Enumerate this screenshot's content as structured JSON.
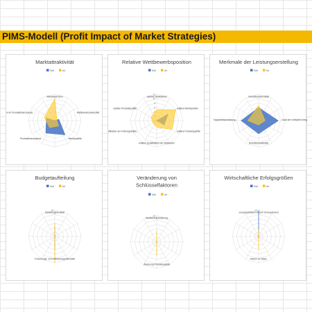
{
  "page_title": "PIMS-Modell (Profit Impact of Market Strategies)",
  "chart_data": [
    {
      "type": "radar",
      "title": [
        "Marktattraktivität"
      ],
      "legend": [
        "Soll",
        "Ist"
      ],
      "axis_max": 12,
      "tick_labels": [],
      "axes": [
        "Marktwachstum",
        "Wettbewerbsintensität",
        "Marktqualität",
        "Produktlebenszyklus",
        "Position im Produktlebenszyklus"
      ],
      "series": [
        {
          "name": "Soll",
          "values": [
            0,
            2,
            8,
            7,
            4
          ]
        },
        {
          "name": "Ist",
          "values": [
            10,
            1,
            3,
            4,
            5
          ]
        }
      ]
    },
    {
      "type": "radar",
      "title": [
        "Relative Wettbewerbsposition"
      ],
      "legend": [
        "Soll",
        "Ist"
      ],
      "axis_max": 12,
      "tick_labels": [
        "12",
        "10",
        "8",
        "6",
        "4",
        "2",
        "0"
      ],
      "axes": [
        "relativer Marktanteil",
        "relative Marktposition",
        "relative Produktqualität",
        "relative Qualifikation der Mitarbeiter",
        "relative Qualifikation der Führungskräfte",
        "relative Produktqualität"
      ],
      "series": [
        {
          "name": "Soll",
          "values": [
            0,
            6,
            4,
            0,
            0,
            0
          ]
        },
        {
          "name": "Ist",
          "values": [
            5,
            10,
            8,
            3,
            2,
            3
          ]
        }
      ]
    },
    {
      "type": "radar",
      "title": [
        "Merkmale der Leistungserstellung"
      ],
      "legend": [
        "Soll",
        "Ist"
      ],
      "axis_max": 12,
      "tick_labels": [],
      "axes": [
        "Investitionsintensität",
        "Grad der vertikalen Integration",
        "Arbeitsproduktivität",
        "Kapazitätsauslastung"
      ],
      "series": [
        {
          "name": "Soll",
          "values": [
            6,
            9,
            6,
            8
          ]
        },
        {
          "name": "Ist",
          "values": [
            7,
            3,
            2,
            5
          ]
        }
      ]
    },
    {
      "type": "radar",
      "title": [
        "Budgetaufteilung"
      ],
      "legend": [
        "Soll",
        "Ist"
      ],
      "axis_max": 12,
      "tick_labels": [
        "12"
      ],
      "axes": [
        "Marketingintensität",
        "Forschungs- und Entwicklungsintensität"
      ],
      "series": [
        {
          "name": "Soll",
          "values": [
            4,
            6
          ]
        },
        {
          "name": "Ist",
          "values": [
            6,
            12
          ]
        }
      ]
    },
    {
      "type": "radar",
      "title": [
        "Veränderung von",
        "Schlüsselfaktoren"
      ],
      "legend": [
        "Soll",
        "Ist"
      ],
      "axis_max": 12,
      "tick_labels": [
        "12"
      ],
      "axes": [
        "Marktanteilsänderung",
        "Änderung Produktqualität"
      ],
      "series": [
        {
          "name": "Soll",
          "values": [
            0,
            0
          ]
        },
        {
          "name": "Ist",
          "values": [
            5,
            6
          ]
        }
      ]
    },
    {
      "type": "radar",
      "title": [
        "Wirtschaftliche Erfolgsgrößen"
      ],
      "legend": [
        "Soll",
        "Ist"
      ],
      "axis_max": 12,
      "tick_labels": [
        "12"
      ],
      "axes": [
        "voraussichtlicher Return on Investment",
        "Return on Sales"
      ],
      "series": [
        {
          "name": "Soll",
          "values": [
            12,
            1
          ]
        },
        {
          "name": "Ist",
          "values": [
            3,
            6
          ]
        }
      ]
    }
  ]
}
